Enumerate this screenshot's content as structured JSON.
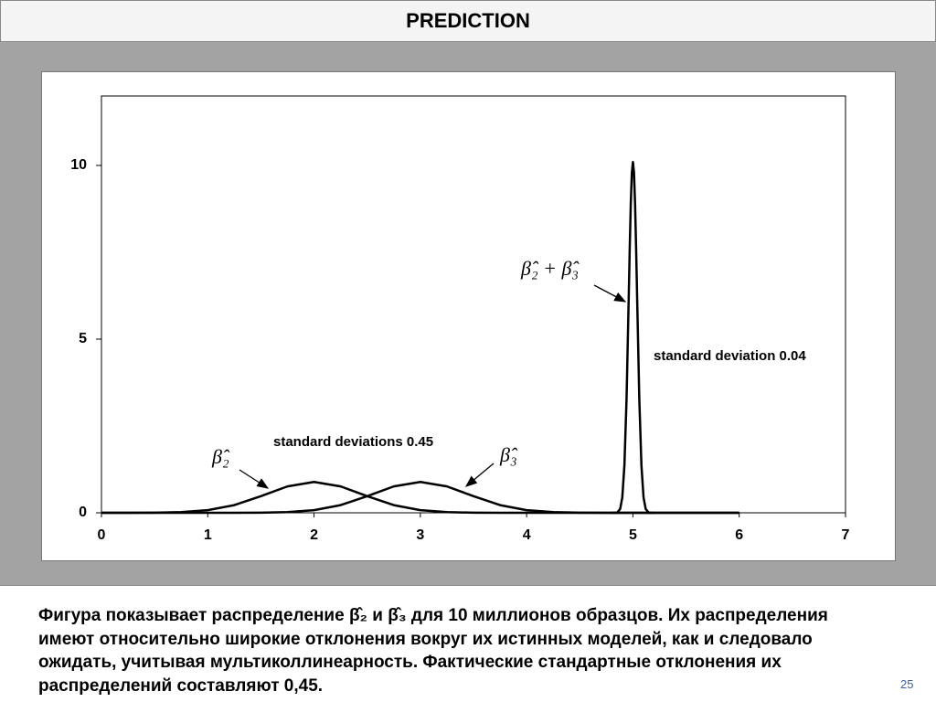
{
  "title": "PREDICTION",
  "chart_data": {
    "type": "line",
    "series": [
      {
        "name": "β̂₂",
        "color": "#000000",
        "x": [
          0,
          0.25,
          0.5,
          0.75,
          1,
          1.25,
          1.5,
          1.75,
          2,
          2.25,
          2.5,
          2.75,
          3,
          3.25,
          3.5,
          3.75,
          4,
          4.25,
          4.5,
          4.75,
          5,
          5.25,
          5.5,
          5.75,
          6
        ],
        "values": [
          0,
          0,
          0.003,
          0.019,
          0.075,
          0.221,
          0.478,
          0.76,
          0.887,
          0.76,
          0.478,
          0.221,
          0.075,
          0.019,
          0.003,
          0,
          0,
          0,
          0,
          0,
          0,
          0,
          0,
          0,
          0
        ]
      },
      {
        "name": "β̂₃",
        "color": "#000000",
        "x": [
          0,
          0.25,
          0.5,
          0.75,
          1,
          1.25,
          1.5,
          1.75,
          2,
          2.25,
          2.5,
          2.75,
          3,
          3.25,
          3.5,
          3.75,
          4,
          4.25,
          4.5,
          4.75,
          5,
          5.25,
          5.5,
          5.75,
          6
        ],
        "values": [
          0,
          0,
          0,
          0,
          0,
          0,
          0.003,
          0.019,
          0.075,
          0.221,
          0.478,
          0.76,
          0.887,
          0.76,
          0.478,
          0.221,
          0.075,
          0.019,
          0.003,
          0,
          0,
          0,
          0,
          0,
          0
        ]
      },
      {
        "name": "β̂₂ + β̂₃",
        "color": "#000000",
        "x": [
          4.8,
          4.85,
          4.88,
          4.9,
          4.92,
          4.94,
          4.96,
          4.97,
          4.98,
          4.99,
          5,
          5.01,
          5.02,
          5.03,
          5.04,
          5.06,
          5.08,
          5.1,
          5.12,
          5.15,
          5.2
        ],
        "values": [
          0,
          0,
          0.11,
          0.44,
          1.37,
          3.28,
          6.13,
          7.62,
          8.91,
          9.79,
          10.1,
          9.79,
          8.91,
          7.62,
          6.13,
          3.28,
          1.37,
          0.44,
          0.11,
          0,
          0
        ]
      }
    ],
    "annotations": [
      "standard deviations 0.45",
      "standard deviation 0.04"
    ],
    "xlim": [
      0,
      7
    ],
    "xticks": [
      0,
      1,
      2,
      3,
      4,
      5,
      6,
      7
    ],
    "ylim": [
      0,
      12
    ],
    "yticks": [
      0,
      5,
      10
    ],
    "grid": false
  },
  "caption": "Фигура показывает распределение β̂₂ и β̂₃ для 10 миллионов образцов. Их распределения имеют относительно широкие отклонения вокруг их истинных моделей, как и следовало ожидать, учитывая мультиколлинеарность. Фактические стандартные отклонения их распределений составляют 0,45.",
  "page_number": "25"
}
